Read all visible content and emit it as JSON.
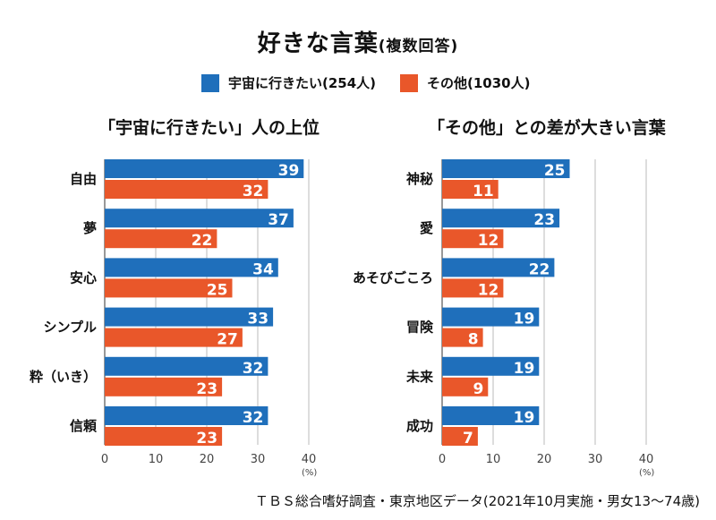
{
  "title": {
    "main": "好きな言葉",
    "sub": "(複数回答)"
  },
  "legend": [
    {
      "label": "宇宙に行きたい(254人)",
      "color": "#1f6fbb"
    },
    {
      "label": "その他(1030人)",
      "color": "#e9572a"
    }
  ],
  "source": "ＴＢＳ総合嗜好調査・東京地区データ(2021年10月実施・男女13〜74歳)",
  "chart_data": [
    {
      "type": "bar",
      "orientation": "horizontal",
      "title": "「宇宙に行きたい」人の上位",
      "categories": [
        "自由",
        "夢",
        "安心",
        "シンプル",
        "粋（いき）",
        "信頼"
      ],
      "series": [
        {
          "name": "宇宙に行きたい(254人)",
          "values": [
            39,
            37,
            34,
            33,
            32,
            32
          ]
        },
        {
          "name": "その他(1030人)",
          "values": [
            32,
            22,
            25,
            27,
            23,
            23
          ]
        }
      ],
      "xlim": [
        0,
        40
      ],
      "xticks": [
        0,
        10,
        20,
        30,
        40
      ],
      "unit": "(%)",
      "grid": true
    },
    {
      "type": "bar",
      "orientation": "horizontal",
      "title": "「その他」との差が大きい言葉",
      "categories": [
        "神秘",
        "愛",
        "あそびごころ",
        "冒険",
        "未来",
        "成功"
      ],
      "series": [
        {
          "name": "宇宙に行きたい(254人)",
          "values": [
            25,
            23,
            22,
            19,
            19,
            19
          ]
        },
        {
          "name": "その他(1030人)",
          "values": [
            11,
            12,
            12,
            8,
            9,
            7
          ]
        }
      ],
      "xlim": [
        0,
        40
      ],
      "xticks": [
        0,
        10,
        20,
        30,
        40
      ],
      "unit": "(%)",
      "grid": true
    }
  ]
}
